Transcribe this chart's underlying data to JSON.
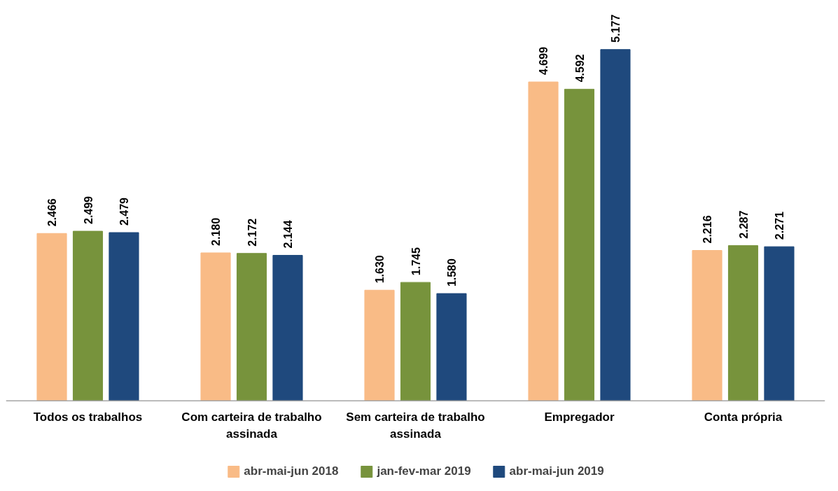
{
  "chart_data": {
    "type": "bar",
    "categories": [
      "Todos os trabalhos",
      "Com carteira de trabalho assinada",
      "Sem carteira de trabalho assinada",
      "Empregador",
      "Conta própria"
    ],
    "series": [
      {
        "name": "abr-mai-jun 2018",
        "color": "#f9bb86",
        "values": [
          2466,
          2180,
          1630,
          4699,
          2216
        ],
        "value_labels": [
          "2.466",
          "2.180",
          "1.630",
          "4.699",
          "2.216"
        ]
      },
      {
        "name": "jan-fev-mar 2019",
        "color": "#77933c",
        "values": [
          2499,
          2172,
          1745,
          4592,
          2287
        ],
        "value_labels": [
          "2.499",
          "2.172",
          "1.745",
          "4.592",
          "2.287"
        ]
      },
      {
        "name": "abr-mai-jun 2019",
        "color": "#1f497d",
        "values": [
          2479,
          2144,
          1580,
          5177,
          2271
        ],
        "value_labels": [
          "2.479",
          "2.144",
          "1.580",
          "5.177",
          "2.271"
        ]
      }
    ],
    "legend": "bottom",
    "grid": false
  }
}
